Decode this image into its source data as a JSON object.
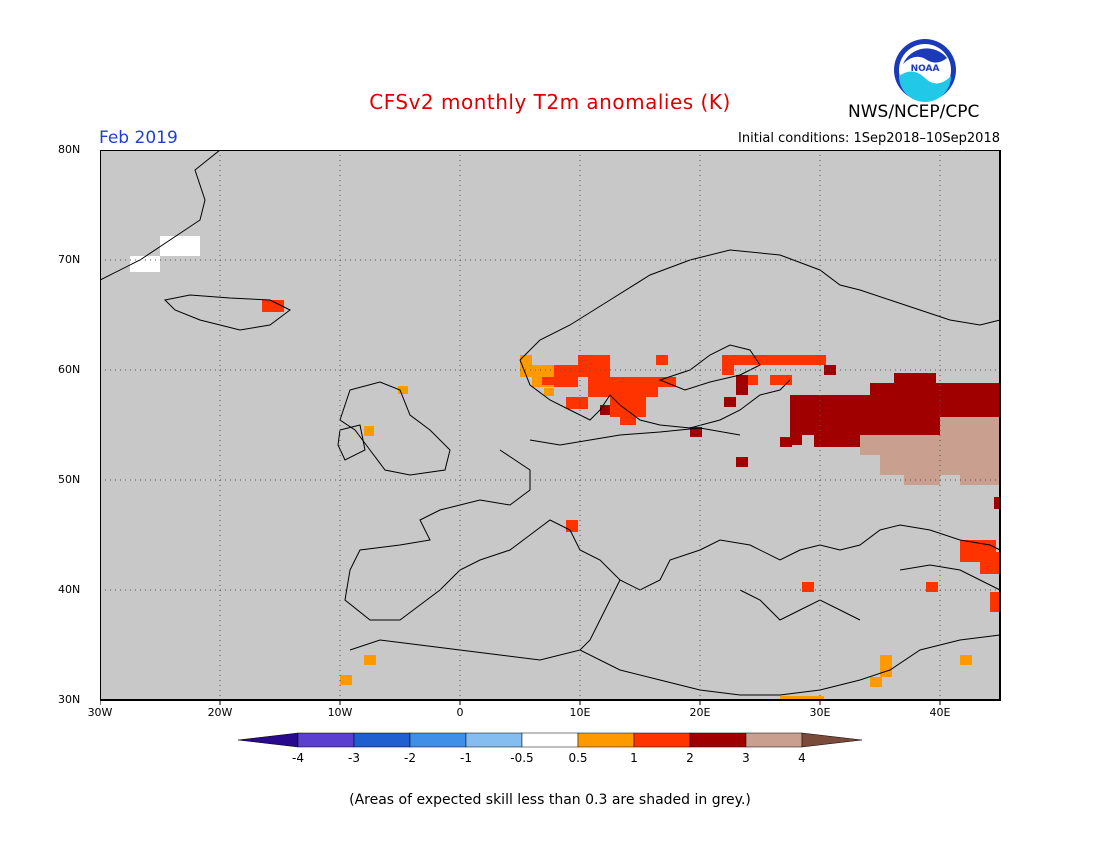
{
  "header": {
    "title": "CFSv2 monthly T2m anomalies (K)",
    "month": "Feb 2019",
    "initial_conditions": "Initial conditions: 1Sep2018–10Sep2018",
    "agency": "NWS/NCEP/CPC",
    "logo_text": "NOAA"
  },
  "map": {
    "lon_range": [
      -30,
      45
    ],
    "lat_range": [
      30,
      80
    ],
    "lat_labels": [
      "80N",
      "70N",
      "60N",
      "50N",
      "40N",
      "30N"
    ],
    "lon_labels": [
      "30W",
      "20W",
      "10W",
      "0",
      "10E",
      "20E",
      "30E",
      "40E"
    ],
    "background": "#c8c8c8",
    "gridlines": "dotted"
  },
  "legend": {
    "tick_labels": [
      "-4",
      "-3",
      "-2",
      "-1",
      "-0.5",
      "0.5",
      "1",
      "2",
      "3",
      "4"
    ],
    "colors": [
      "#2a0a8c",
      "#5a3fd0",
      "#1f5fd0",
      "#3f8ee8",
      "#86bdf0",
      "#ffffff",
      "#ff9900",
      "#ff3300",
      "#a00000",
      "#c9a090",
      "#7a4a3a"
    ]
  },
  "footer": "(Areas of expected skill less than 0.3 are shaded in grey.)"
}
